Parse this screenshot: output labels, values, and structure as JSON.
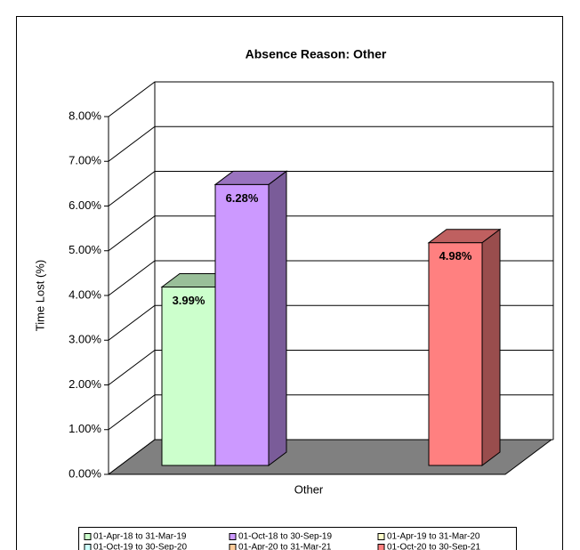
{
  "chart_data": {
    "type": "bar3d",
    "title": "Absence Reason: Other",
    "x_label": "Other",
    "y_label": "Time Lost (%)",
    "categories": [
      "Other"
    ],
    "series": [
      {
        "name": "01-Apr-18 to 31-Mar-19",
        "color": "#ccffcc",
        "values": [
          3.99
        ],
        "value_labels": [
          "3.99%"
        ]
      },
      {
        "name": "01-Oct-18 to 30-Sep-19",
        "color": "#cc99ff",
        "values": [
          6.28
        ],
        "value_labels": [
          "6.28%"
        ]
      },
      {
        "name": "01-Apr-19 to 31-Mar-20",
        "color": "#ffffcc",
        "values": [
          null
        ],
        "value_labels": [
          null
        ]
      },
      {
        "name": "01-Oct-19 to 30-Sep-20",
        "color": "#ccffff",
        "values": [
          null
        ],
        "value_labels": [
          null
        ]
      },
      {
        "name": "01-Apr-20 to 31-Mar-21",
        "color": "#ffcc99",
        "values": [
          null
        ],
        "value_labels": [
          null
        ]
      },
      {
        "name": "01-Oct-20 to 30-Sep-21",
        "color": "#ff8080",
        "values": [
          4.98
        ],
        "value_labels": [
          "4.98%"
        ]
      }
    ],
    "ylim": [
      0,
      8
    ],
    "yticks": [
      {
        "value": 0,
        "label": "0.00%"
      },
      {
        "value": 1,
        "label": "1.00%"
      },
      {
        "value": 2,
        "label": "2.00%"
      },
      {
        "value": 3,
        "label": "3.00%"
      },
      {
        "value": 4,
        "label": "4.00%"
      },
      {
        "value": 5,
        "label": "5.00%"
      },
      {
        "value": 6,
        "label": "6.00%"
      },
      {
        "value": 7,
        "label": "7.00%"
      },
      {
        "value": 8,
        "label": "8.00%"
      }
    ],
    "grid": true
  }
}
